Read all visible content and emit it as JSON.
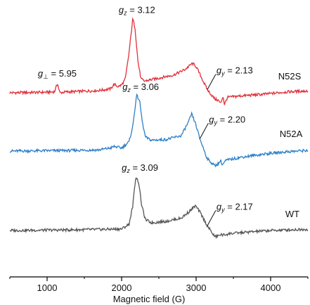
{
  "chart_data": {
    "type": "line",
    "xlabel": "Magnetic field (G)",
    "ylabel": "",
    "xlim": [
      500,
      4500
    ],
    "x_ticks": [
      1000,
      2000,
      3000,
      4000
    ],
    "x_tick_labels": [
      "1000",
      "2000",
      "3000",
      "4000"
    ],
    "grid": false,
    "series": [
      {
        "name": "N52S",
        "color": "#e0303a",
        "points": [
          [
            500,
            0
          ],
          [
            800,
            0.02
          ],
          [
            1050,
            0.04
          ],
          [
            1100,
            0.08
          ],
          [
            1140,
            0.6
          ],
          [
            1170,
            0.0
          ],
          [
            1250,
            0.05
          ],
          [
            1500,
            0.1
          ],
          [
            1700,
            0.15
          ],
          [
            1850,
            0.25
          ],
          [
            1900,
            0.55
          ],
          [
            1950,
            0.4
          ],
          [
            2000,
            0.5
          ],
          [
            2050,
            0.9
          ],
          [
            2100,
            2.6
          ],
          [
            2150,
            4.8
          ],
          [
            2180,
            4.2
          ],
          [
            2220,
            2.0
          ],
          [
            2260,
            0.9
          ],
          [
            2300,
            0.75
          ],
          [
            2500,
            0.95
          ],
          [
            2700,
            1.15
          ],
          [
            2850,
            1.5
          ],
          [
            2950,
            1.9
          ],
          [
            3000,
            1.7
          ],
          [
            3050,
            1.2
          ],
          [
            3150,
            0.2
          ],
          [
            3250,
            -0.4
          ],
          [
            3300,
            -0.5
          ],
          [
            3330,
            -0.7
          ],
          [
            3360,
            -0.2
          ],
          [
            3380,
            -0.75
          ],
          [
            3420,
            -0.3
          ],
          [
            3600,
            -0.2
          ],
          [
            3900,
            -0.1
          ],
          [
            4200,
            0.05
          ],
          [
            4400,
            0.1
          ],
          [
            4500,
            0.12
          ]
        ],
        "annotations": [
          {
            "text": "g⊥ = 5.95",
            "x": 1140,
            "y": 0.6
          },
          {
            "text": "gz = 3.12",
            "x": 2150,
            "y": 4.8
          },
          {
            "text": "gy = 2.13",
            "x": 3150,
            "y": 0.2
          }
        ]
      },
      {
        "name": "N52A",
        "color": "#2c7fc9",
        "points": [
          [
            500,
            0
          ],
          [
            900,
            0.02
          ],
          [
            1300,
            0.04
          ],
          [
            1700,
            0.08
          ],
          [
            1850,
            0.2
          ],
          [
            1900,
            0.3
          ],
          [
            2000,
            0.2
          ],
          [
            2100,
            0.6
          ],
          [
            2150,
            1.6
          ],
          [
            2200,
            3.6
          ],
          [
            2240,
            3.3
          ],
          [
            2280,
            1.8
          ],
          [
            2320,
            0.9
          ],
          [
            2400,
            0.7
          ],
          [
            2600,
            0.75
          ],
          [
            2800,
            1.0
          ],
          [
            2900,
            1.9
          ],
          [
            2940,
            2.4
          ],
          [
            2990,
            1.8
          ],
          [
            3050,
            0.8
          ],
          [
            3150,
            -0.5
          ],
          [
            3250,
            -0.95
          ],
          [
            3300,
            -0.8
          ],
          [
            3330,
            -0.6
          ],
          [
            3350,
            -0.9
          ],
          [
            3400,
            -0.6
          ],
          [
            3600,
            -0.4
          ],
          [
            3900,
            -0.2
          ],
          [
            4200,
            -0.05
          ],
          [
            4500,
            0.05
          ]
        ],
        "annotations": [
          {
            "text": "gz = 3.06",
            "x": 2200,
            "y": 3.6
          },
          {
            "text": "gy = 2.20",
            "x": 3050,
            "y": 0.8
          }
        ]
      },
      {
        "name": "WT",
        "color": "#555555",
        "points": [
          [
            500,
            0
          ],
          [
            900,
            0.02
          ],
          [
            1300,
            0.04
          ],
          [
            1700,
            0.07
          ],
          [
            2000,
            0.1
          ],
          [
            2100,
            0.4
          ],
          [
            2150,
            1.6
          ],
          [
            2190,
            3.5
          ],
          [
            2230,
            3.1
          ],
          [
            2270,
            1.6
          ],
          [
            2320,
            0.7
          ],
          [
            2400,
            0.5
          ],
          [
            2600,
            0.6
          ],
          [
            2800,
            0.8
          ],
          [
            2900,
            1.2
          ],
          [
            2990,
            1.6
          ],
          [
            3050,
            1.2
          ],
          [
            3150,
            0.3
          ],
          [
            3250,
            -0.4
          ],
          [
            3300,
            -0.35
          ],
          [
            3330,
            -0.25
          ],
          [
            3360,
            -0.3
          ],
          [
            3450,
            -0.2
          ],
          [
            3700,
            -0.1
          ],
          [
            4000,
            0.0
          ],
          [
            4300,
            0.05
          ],
          [
            4500,
            0.08
          ]
        ],
        "annotations": [
          {
            "text": "gz = 3.09",
            "x": 2190,
            "y": 3.5
          },
          {
            "text": "gy = 2.17",
            "x": 3150,
            "y": 0.3
          }
        ]
      }
    ]
  }
}
